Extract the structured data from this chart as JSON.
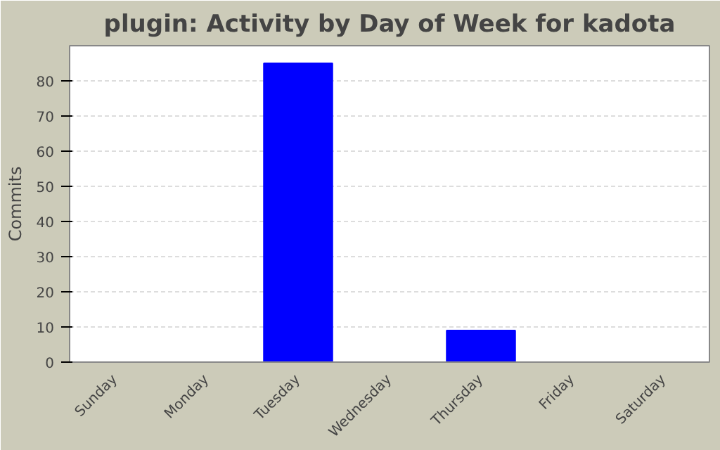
{
  "chart_data": {
    "type": "bar",
    "title": "plugin: Activity by Day of Week for kadota",
    "ylabel": "Commits",
    "categories": [
      "Sunday",
      "Monday",
      "Tuesday",
      "Wednesday",
      "Thursday",
      "Friday",
      "Saturday"
    ],
    "values": [
      0,
      0,
      85,
      0,
      9,
      0,
      0
    ],
    "color": "#0000ff",
    "ylim": [
      0,
      90
    ],
    "yticks": [
      0,
      10,
      20,
      30,
      40,
      50,
      60,
      70,
      80
    ],
    "grid": "y"
  }
}
